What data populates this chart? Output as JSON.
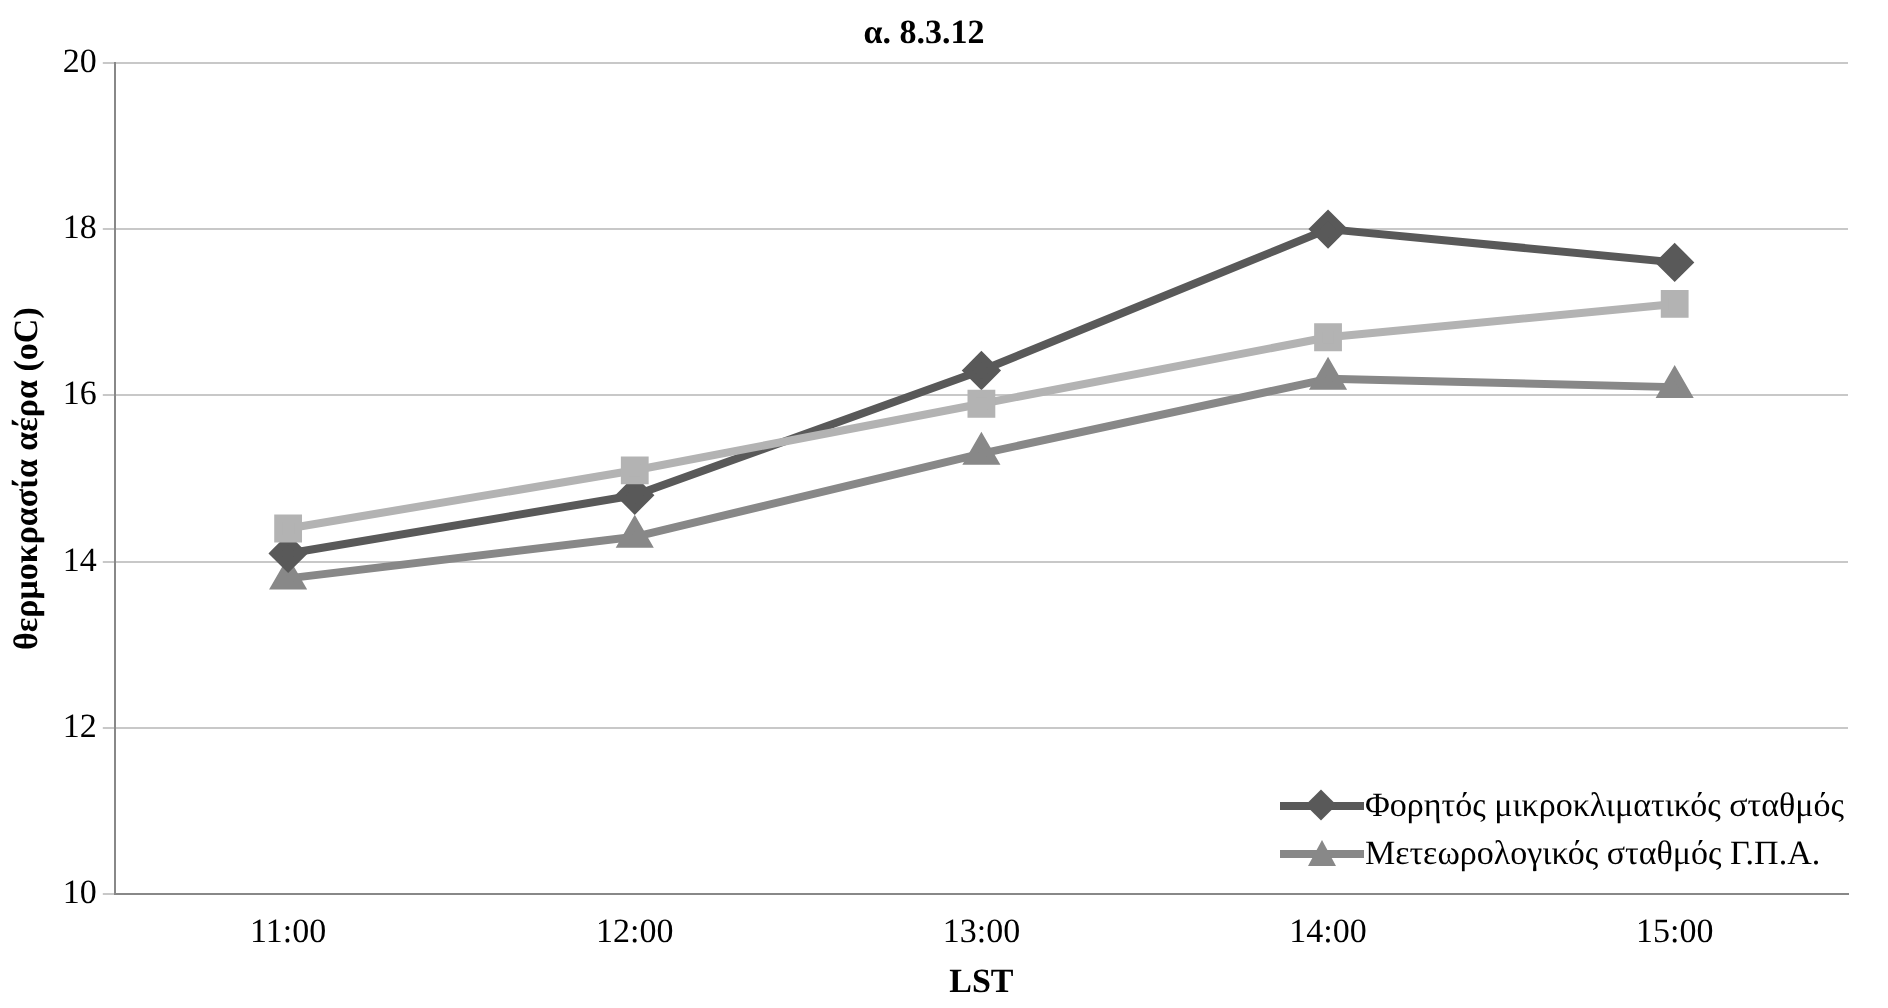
{
  "chart_data": {
    "type": "line",
    "title": "α. 8.3.12",
    "xlabel": "LST",
    "ylabel": "θερμοκρασία αέρα (oC)",
    "categories": [
      "11:00",
      "12:00",
      "13:00",
      "14:00",
      "15:00"
    ],
    "series": [
      {
        "color": "#b3b3b3",
        "marker": "square",
        "values": [
          14.4,
          15.1,
          15.9,
          16.7,
          17.1
        ]
      },
      {
        "name": "Φορητός μικροκλιματικός σταθμός",
        "color": "#595959",
        "marker": "diamond",
        "values": [
          14.1,
          14.8,
          16.3,
          18.0,
          17.6
        ]
      },
      {
        "name": "Μετεωρολογικός σταθμός Γ.Π.Α.",
        "color": "#888888",
        "marker": "triangle",
        "values": [
          13.8,
          14.3,
          15.3,
          16.2,
          16.1
        ]
      }
    ],
    "ylim": [
      10,
      20
    ],
    "yticks": [
      10,
      12,
      14,
      16,
      18,
      20
    ],
    "grid": "y",
    "legend": "bottom right"
  }
}
